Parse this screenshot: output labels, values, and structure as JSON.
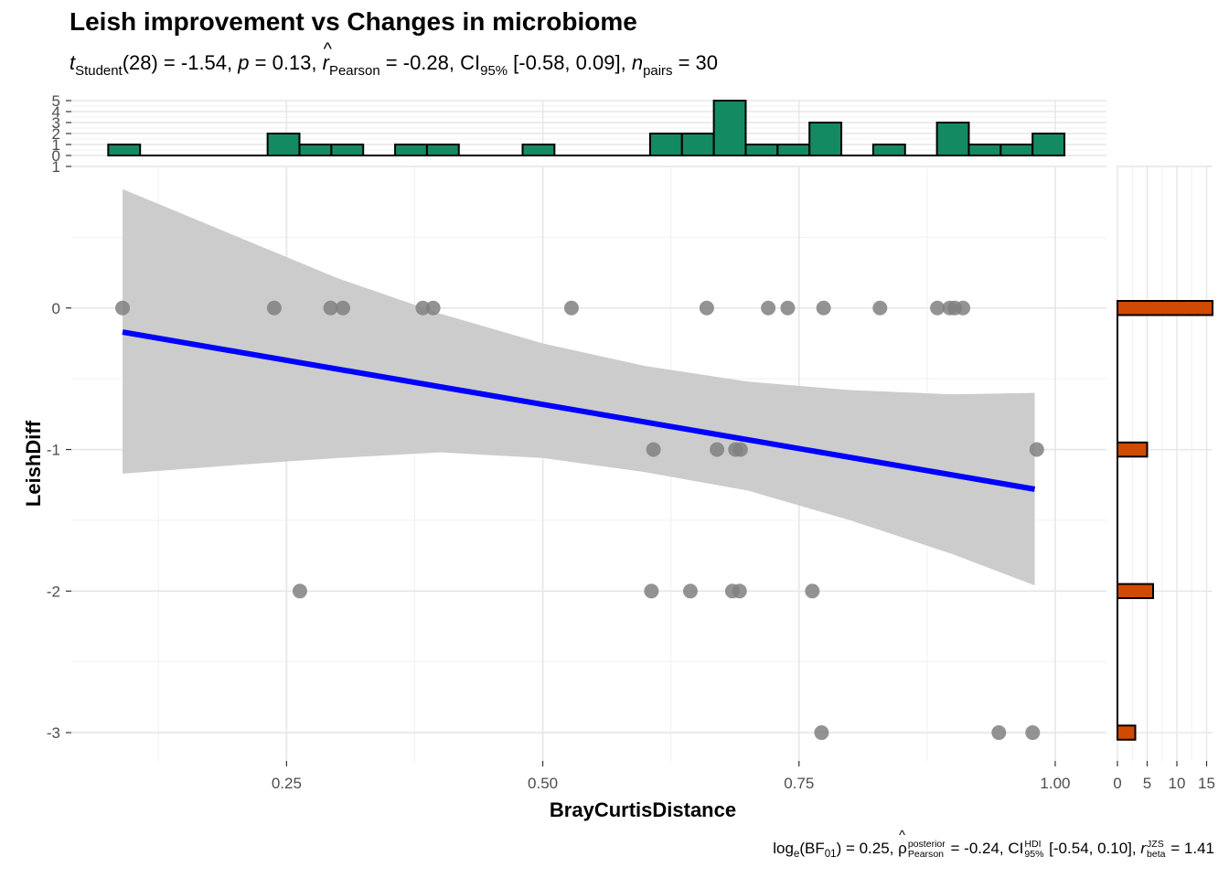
{
  "chart_data": {
    "type": "scatter",
    "title": "Leish improvement vs Changes in microbiome",
    "subtitle": {
      "t_label": "t",
      "t_sub": "Student",
      "t_text": "(28) = -1.54, ",
      "p_label": "p",
      "p_text": " = 0.13, ",
      "r_label": "r",
      "r_sub": "Pearson",
      "r_text": " = -0.28, CI",
      "ci_sub": "95%",
      "ci_text": " [-0.58, 0.09], ",
      "n_label": "n",
      "n_sub": "pairs",
      "n_text": " = 30"
    },
    "caption": {
      "log_text": "log",
      "log_sub": "e",
      "bf_open": "(BF",
      "bf_sub": "01",
      "bf_text": ") = 0.25, ",
      "rho_label": "ρ",
      "rho_sup": "posterior",
      "rho_sub": "Pearson",
      "rho_text": " = -0.24, CI",
      "ci_sup": "HDI",
      "ci_sub": "95%",
      "ci_text": " [-0.54, 0.10], ",
      "rb_label": "r",
      "rb_sup": "JZS",
      "rb_sub": "beta",
      "rb_text": " = 1.41"
    },
    "xlabel": "BrayCurtisDistance",
    "ylabel": "LeishDiff",
    "xlim": [
      0.04,
      1.05
    ],
    "ylim": [
      -3.2,
      1.0
    ],
    "x_ticks": [
      "0.25",
      "0.50",
      "0.75",
      "1.00"
    ],
    "y_ticks": [
      "1",
      "0",
      "-1",
      "-2",
      "-3"
    ],
    "points": [
      {
        "x": 0.09,
        "y": 0
      },
      {
        "x": 0.238,
        "y": 0
      },
      {
        "x": 0.293,
        "y": 0
      },
      {
        "x": 0.305,
        "y": 0
      },
      {
        "x": 0.383,
        "y": 0
      },
      {
        "x": 0.393,
        "y": 0
      },
      {
        "x": 0.528,
        "y": 0
      },
      {
        "x": 0.66,
        "y": 0
      },
      {
        "x": 0.72,
        "y": 0
      },
      {
        "x": 0.739,
        "y": 0
      },
      {
        "x": 0.774,
        "y": 0
      },
      {
        "x": 0.829,
        "y": 0
      },
      {
        "x": 0.885,
        "y": 0
      },
      {
        "x": 0.897,
        "y": 0
      },
      {
        "x": 0.902,
        "y": 0
      },
      {
        "x": 0.91,
        "y": 0
      },
      {
        "x": 0.608,
        "y": -1
      },
      {
        "x": 0.67,
        "y": -1
      },
      {
        "x": 0.688,
        "y": -1
      },
      {
        "x": 0.693,
        "y": -1
      },
      {
        "x": 0.982,
        "y": -1
      },
      {
        "x": 0.263,
        "y": -2
      },
      {
        "x": 0.606,
        "y": -2
      },
      {
        "x": 0.644,
        "y": -2
      },
      {
        "x": 0.685,
        "y": -2
      },
      {
        "x": 0.692,
        "y": -2
      },
      {
        "x": 0.763,
        "y": -2
      },
      {
        "x": 0.772,
        "y": -3
      },
      {
        "x": 0.945,
        "y": -3
      },
      {
        "x": 0.978,
        "y": -3
      }
    ],
    "regression_line": {
      "x": [
        0.09,
        0.98
      ],
      "y": [
        -0.17,
        -1.28
      ],
      "color": "#0000FF"
    },
    "confidence_band": {
      "x": [
        0.09,
        0.2,
        0.3,
        0.4,
        0.5,
        0.6,
        0.7,
        0.8,
        0.9,
        0.98
      ],
      "upper": [
        0.84,
        0.51,
        0.21,
        -0.04,
        -0.25,
        -0.41,
        -0.52,
        -0.58,
        -0.61,
        -0.6
      ],
      "lower": [
        -1.17,
        -1.11,
        -1.06,
        -1.02,
        -1.06,
        -1.16,
        -1.29,
        -1.5,
        -1.74,
        -1.96
      ],
      "color": "#CCCCCC"
    },
    "point_color": "#808080",
    "top_histogram": {
      "color": "#148A62",
      "y_ticks": [
        "0",
        "1",
        "2",
        "3",
        "4",
        "5"
      ],
      "ylim": [
        0,
        5
      ],
      "bins_x_start": 0.076,
      "bin_width": 0.0311,
      "counts": [
        1,
        0,
        0,
        0,
        0,
        2,
        1,
        1,
        0,
        1,
        1,
        0,
        0,
        1,
        0,
        0,
        0,
        2,
        2,
        5,
        1,
        1,
        3,
        0,
        1,
        0,
        3,
        1,
        1,
        2
      ]
    },
    "right_histogram": {
      "color": "#D04A02",
      "x_ticks": [
        "0",
        "5",
        "10",
        "15"
      ],
      "xlim": [
        0,
        16
      ],
      "bars": [
        {
          "y": 0,
          "count": 16
        },
        {
          "y": -1,
          "count": 5
        },
        {
          "y": -2,
          "count": 6
        },
        {
          "y": -3,
          "count": 3
        }
      ]
    },
    "grid": true,
    "legend": "none"
  }
}
